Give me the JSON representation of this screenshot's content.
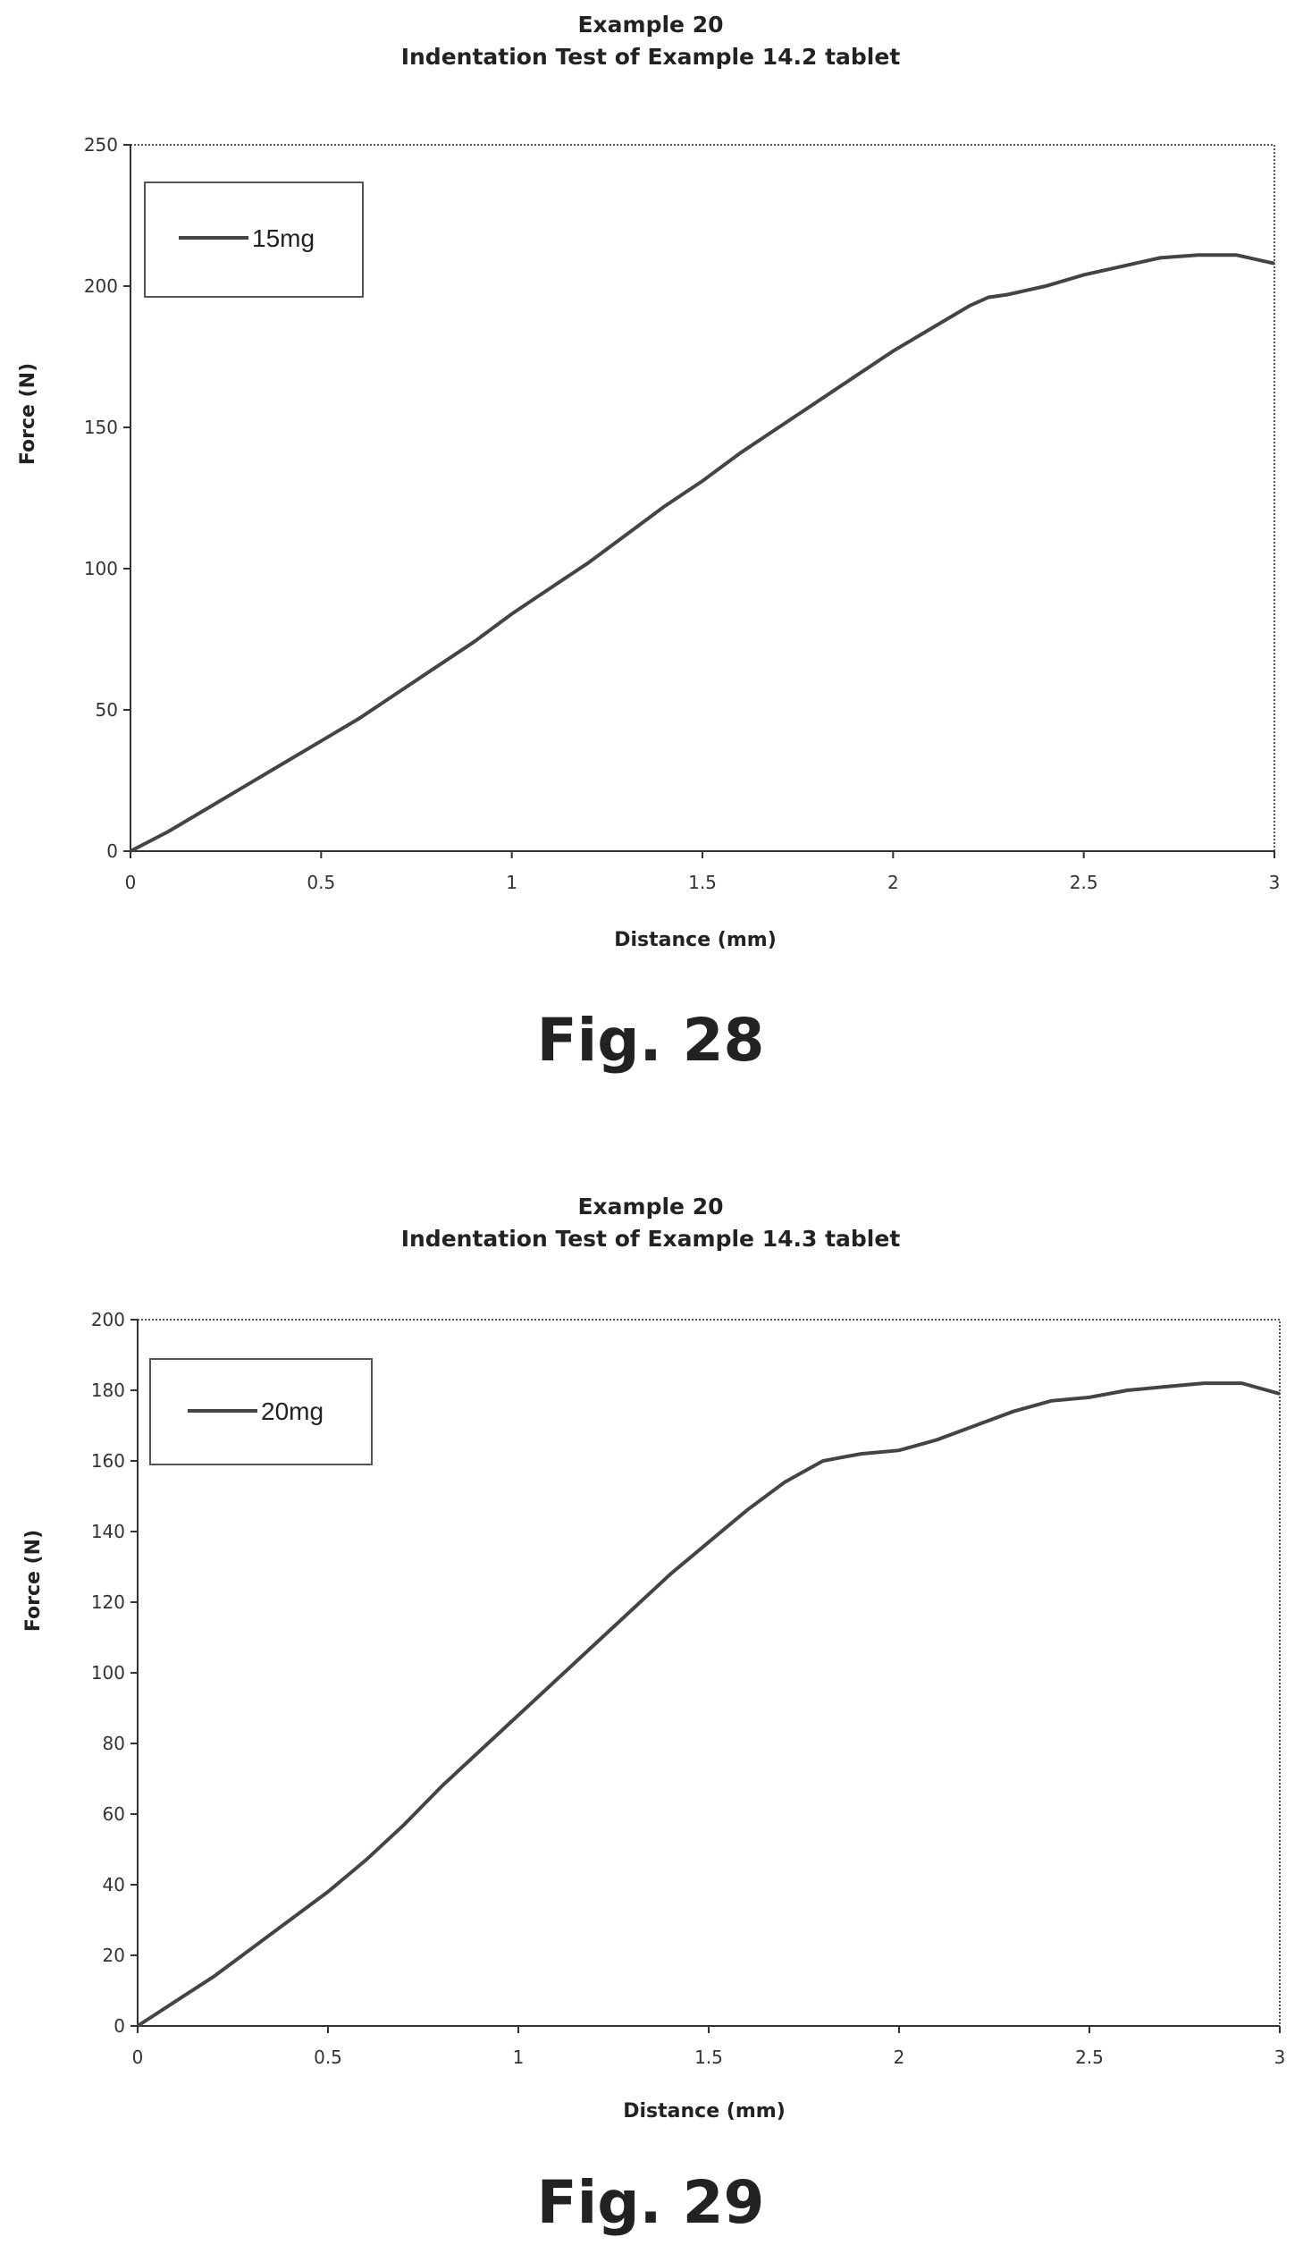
{
  "colors": {
    "line": "#444444",
    "frame": "#555555",
    "background": "#ffffff"
  },
  "charts": [
    {
      "title": "Example 20",
      "subtitle": "Indentation Test of Example 14.2 tablet",
      "xlabel": "Distance (mm)",
      "ylabel": "Force (N)",
      "figure_label": "Fig. 28",
      "legend": "15mg",
      "xticks": [
        "0",
        "0.5",
        "1",
        "1.5",
        "2",
        "2.5",
        "3"
      ],
      "yticks": [
        "0",
        "50",
        "100",
        "150",
        "200",
        "250"
      ]
    },
    {
      "title": "Example 20",
      "subtitle": "Indentation Test of Example 14.3 tablet",
      "xlabel": "Distance (mm)",
      "ylabel": "Force (N)",
      "figure_label": "Fig. 29",
      "legend": "20mg",
      "xticks": [
        "0",
        "0.5",
        "1",
        "1.5",
        "2",
        "2.5",
        "3"
      ],
      "yticks": [
        "0",
        "20",
        "40",
        "60",
        "80",
        "100",
        "120",
        "140",
        "160",
        "180",
        "200"
      ]
    }
  ],
  "chart_data": [
    {
      "type": "line",
      "title": "Example 20",
      "subtitle": "Indentation Test of Example 14.2 tablet",
      "xlabel": "Distance (mm)",
      "ylabel": "Force (N)",
      "xlim": [
        0,
        3
      ],
      "ylim": [
        0,
        250
      ],
      "grid": false,
      "legend_position": "top-left",
      "series": [
        {
          "name": "15mg",
          "x": [
            0,
            0.1,
            0.2,
            0.3,
            0.4,
            0.5,
            0.6,
            0.7,
            0.8,
            0.9,
            1.0,
            1.1,
            1.2,
            1.3,
            1.4,
            1.5,
            1.6,
            1.7,
            1.8,
            1.9,
            2.0,
            2.1,
            2.2,
            2.25,
            2.3,
            2.4,
            2.5,
            2.6,
            2.7,
            2.8,
            2.9,
            3.0
          ],
          "y": [
            0,
            7,
            15,
            23,
            31,
            39,
            47,
            56,
            65,
            74,
            84,
            93,
            102,
            112,
            122,
            131,
            141,
            150,
            159,
            168,
            177,
            185,
            193,
            196,
            197,
            200,
            204,
            207,
            210,
            211,
            211,
            208
          ]
        }
      ]
    },
    {
      "type": "line",
      "title": "Example 20",
      "subtitle": "Indentation Test of Example 14.3 tablet",
      "xlabel": "Distance (mm)",
      "ylabel": "Force (N)",
      "xlim": [
        0,
        3
      ],
      "ylim": [
        0,
        200
      ],
      "grid": false,
      "legend_position": "top-left",
      "series": [
        {
          "name": "20mg",
          "x": [
            0,
            0.1,
            0.2,
            0.3,
            0.4,
            0.5,
            0.6,
            0.7,
            0.8,
            0.9,
            1.0,
            1.1,
            1.2,
            1.3,
            1.4,
            1.5,
            1.6,
            1.7,
            1.8,
            1.85,
            1.9,
            2.0,
            2.1,
            2.2,
            2.3,
            2.4,
            2.5,
            2.6,
            2.7,
            2.8,
            2.9,
            3.0
          ],
          "y": [
            0,
            7,
            14,
            22,
            30,
            38,
            47,
            57,
            68,
            78,
            88,
            98,
            108,
            118,
            128,
            137,
            146,
            154,
            160,
            161,
            162,
            163,
            166,
            170,
            174,
            177,
            178,
            180,
            181,
            182,
            182,
            179
          ]
        }
      ]
    }
  ]
}
